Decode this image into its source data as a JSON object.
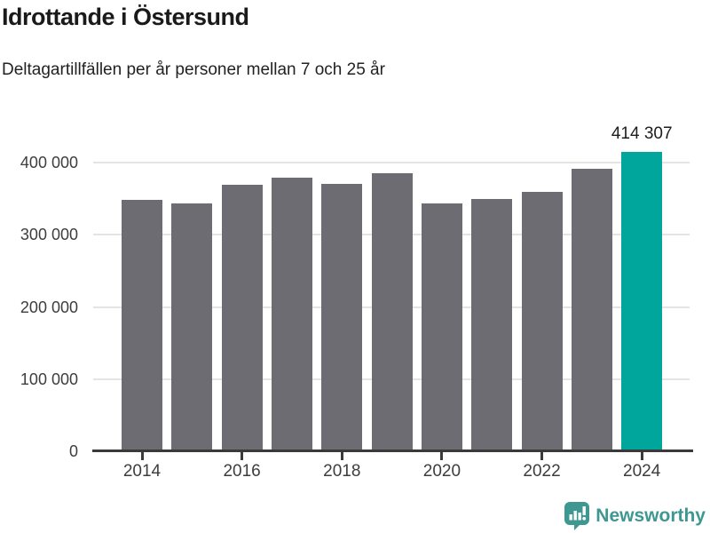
{
  "header": {
    "title": "Idrottande i Östersund",
    "subtitle": "Deltagartillfällen per år personer mellan 7 och 25 år"
  },
  "chart_data": {
    "type": "bar",
    "title": "Idrottande i Östersund",
    "subtitle": "Deltagartillfällen per år personer mellan 7 och 25 år",
    "categories": [
      "2014",
      "2015",
      "2016",
      "2017",
      "2018",
      "2019",
      "2020",
      "2021",
      "2022",
      "2023",
      "2024"
    ],
    "values": [
      348000,
      343000,
      369000,
      379000,
      370000,
      385000,
      344000,
      349000,
      360000,
      391000,
      414307
    ],
    "highlight_index": 10,
    "highlight_value_label": "414 307",
    "bar_color": "#6c6c72",
    "highlight_color": "#00a59b",
    "grid": true,
    "legend_position": "none",
    "ylim": [
      0,
      430000
    ],
    "ytick_values": [
      0,
      100000,
      200000,
      300000,
      400000
    ],
    "ytick_labels": [
      "0",
      "100 000",
      "200 000",
      "300 000",
      "400 000"
    ],
    "xtick_indices": [
      0,
      2,
      4,
      6,
      8,
      10
    ],
    "xtick_labels": [
      "2014",
      "2016",
      "2018",
      "2020",
      "2022",
      "2024"
    ]
  },
  "footer": {
    "brand": "Newsworthy",
    "brand_color": "#3f9792",
    "logo_icon": "bar-chart-speech-bubble"
  }
}
